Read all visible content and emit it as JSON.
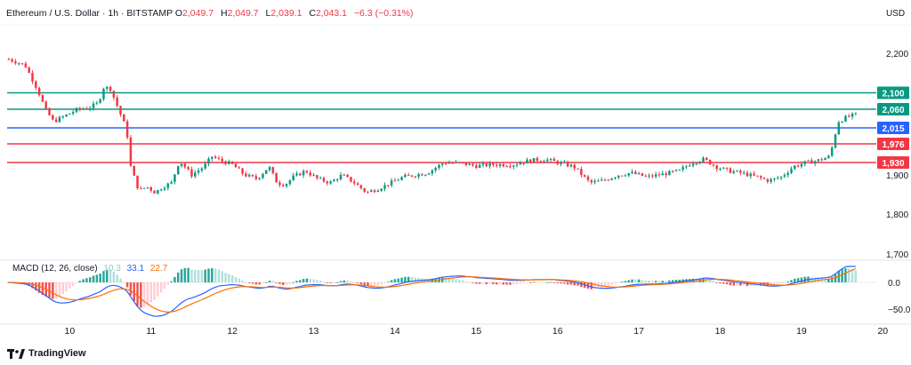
{
  "header": {
    "symbol": "Ethereum / U.S. Dollar · 1h · BITSTAMP",
    "o_label": "O",
    "o_value": "2,049.7",
    "h_label": "H",
    "h_value": "2,049.7",
    "l_label": "L",
    "l_value": "2,039.1",
    "c_label": "C",
    "c_value": "2,043.1",
    "change": "−6.3 (−0.31%)"
  },
  "currency": "USD",
  "macd": {
    "label": "MACD (12, 26, close)",
    "hist_value": "10.3",
    "macd_value": "33.1",
    "signal_value": "22.7",
    "colors": {
      "macd": "#2962ff",
      "signal": "#ff6d00",
      "hist_pos": "#26a69a",
      "hist_neg": "#ef5350"
    },
    "yticks": [
      {
        "v": 0,
        "label": "0.0"
      },
      {
        "v": -50,
        "label": "−50.0"
      }
    ],
    "ylim": [
      -70,
      30
    ]
  },
  "brand": "TradingView",
  "chart_data": {
    "type": "candlestick",
    "price_ylim": [
      1700,
      2230
    ],
    "yticks": [
      {
        "v": 2200,
        "label": "2,200"
      },
      {
        "v": 1900,
        "label": "1,900"
      },
      {
        "v": 1800,
        "label": "1,800"
      },
      {
        "v": 1700,
        "label": "1,700"
      }
    ],
    "xlim": [
      9.23,
      19.92
    ],
    "xticks": [
      {
        "v": 10,
        "label": "10"
      },
      {
        "v": 11,
        "label": "11"
      },
      {
        "v": 12,
        "label": "12"
      },
      {
        "v": 13,
        "label": "13"
      },
      {
        "v": 14,
        "label": "14"
      },
      {
        "v": 15,
        "label": "15"
      },
      {
        "v": 16,
        "label": "16"
      },
      {
        "v": 17,
        "label": "17"
      },
      {
        "v": 18,
        "label": "18"
      },
      {
        "v": 19,
        "label": "19"
      },
      {
        "v": 20,
        "label": "20"
      }
    ],
    "levels": [
      {
        "value": 2100,
        "label": "2,100",
        "color": "#089981"
      },
      {
        "value": 2060,
        "label": "2,060",
        "color": "#089981"
      },
      {
        "value": 2015,
        "label": "2,015",
        "color": "#2962ff"
      },
      {
        "value": 1976,
        "label": "1,976",
        "color": "#f23645"
      },
      {
        "value": 1930,
        "label": "1,930",
        "color": "#f23645"
      }
    ],
    "path": [
      [
        9.25,
        2185
      ],
      [
        9.45,
        2170
      ],
      [
        9.6,
        2110
      ],
      [
        9.7,
        2060
      ],
      [
        9.8,
        2030
      ],
      [
        9.95,
        2045
      ],
      [
        10.1,
        2060
      ],
      [
        10.25,
        2065
      ],
      [
        10.35,
        2075
      ],
      [
        10.42,
        2115
      ],
      [
        10.5,
        2110
      ],
      [
        10.6,
        2060
      ],
      [
        10.7,
        2010
      ],
      [
        10.75,
        1920
      ],
      [
        10.85,
        1860
      ],
      [
        10.95,
        1870
      ],
      [
        11.05,
        1855
      ],
      [
        11.15,
        1870
      ],
      [
        11.25,
        1880
      ],
      [
        11.35,
        1935
      ],
      [
        11.5,
        1900
      ],
      [
        11.65,
        1920
      ],
      [
        11.75,
        1945
      ],
      [
        11.85,
        1935
      ],
      [
        12.0,
        1925
      ],
      [
        12.15,
        1900
      ],
      [
        12.3,
        1890
      ],
      [
        12.45,
        1920
      ],
      [
        12.55,
        1880
      ],
      [
        12.65,
        1875
      ],
      [
        12.75,
        1895
      ],
      [
        12.9,
        1910
      ],
      [
        13.05,
        1890
      ],
      [
        13.2,
        1880
      ],
      [
        13.35,
        1900
      ],
      [
        13.5,
        1880
      ],
      [
        13.65,
        1855
      ],
      [
        13.8,
        1865
      ],
      [
        13.95,
        1880
      ],
      [
        14.1,
        1895
      ],
      [
        14.25,
        1900
      ],
      [
        14.4,
        1905
      ],
      [
        14.6,
        1930
      ],
      [
        14.8,
        1928
      ],
      [
        15.0,
        1922
      ],
      [
        15.2,
        1925
      ],
      [
        15.45,
        1925
      ],
      [
        15.65,
        1935
      ],
      [
        15.85,
        1938
      ],
      [
        16.0,
        1930
      ],
      [
        16.2,
        1920
      ],
      [
        16.4,
        1880
      ],
      [
        16.55,
        1885
      ],
      [
        16.75,
        1900
      ],
      [
        16.9,
        1905
      ],
      [
        17.1,
        1895
      ],
      [
        17.3,
        1902
      ],
      [
        17.5,
        1910
      ],
      [
        17.65,
        1930
      ],
      [
        17.8,
        1938
      ],
      [
        17.95,
        1920
      ],
      [
        18.1,
        1910
      ],
      [
        18.25,
        1905
      ],
      [
        18.45,
        1895
      ],
      [
        18.6,
        1885
      ],
      [
        18.75,
        1895
      ],
      [
        18.9,
        1920
      ],
      [
        19.05,
        1930
      ],
      [
        19.2,
        1935
      ],
      [
        19.35,
        1945
      ],
      [
        19.45,
        2030
      ],
      [
        19.55,
        2040
      ],
      [
        19.68,
        2048
      ]
    ]
  }
}
